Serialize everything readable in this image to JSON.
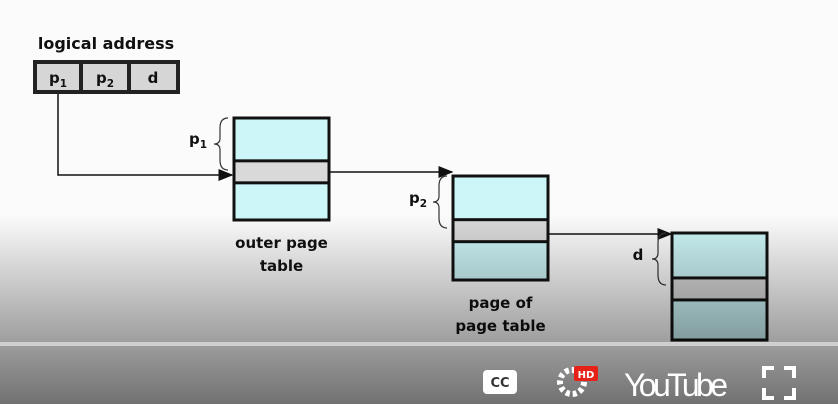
{
  "diagram": {
    "title": "logical address",
    "address_fields": [
      {
        "label": "p",
        "subscript": "1"
      },
      {
        "label": "p",
        "subscript": "2"
      },
      {
        "label": "d"
      }
    ],
    "tables": [
      {
        "index": {
          "label": "p",
          "subscript": "1"
        },
        "caption": [
          "outer page",
          "table"
        ]
      },
      {
        "index": {
          "label": "p",
          "subscript": "2"
        },
        "caption": [
          "page of",
          "page table"
        ]
      },
      {
        "index": {
          "label": "d"
        }
      }
    ]
  },
  "player": {
    "captions": "CC",
    "quality": "HD",
    "brand": "YouTube"
  }
}
